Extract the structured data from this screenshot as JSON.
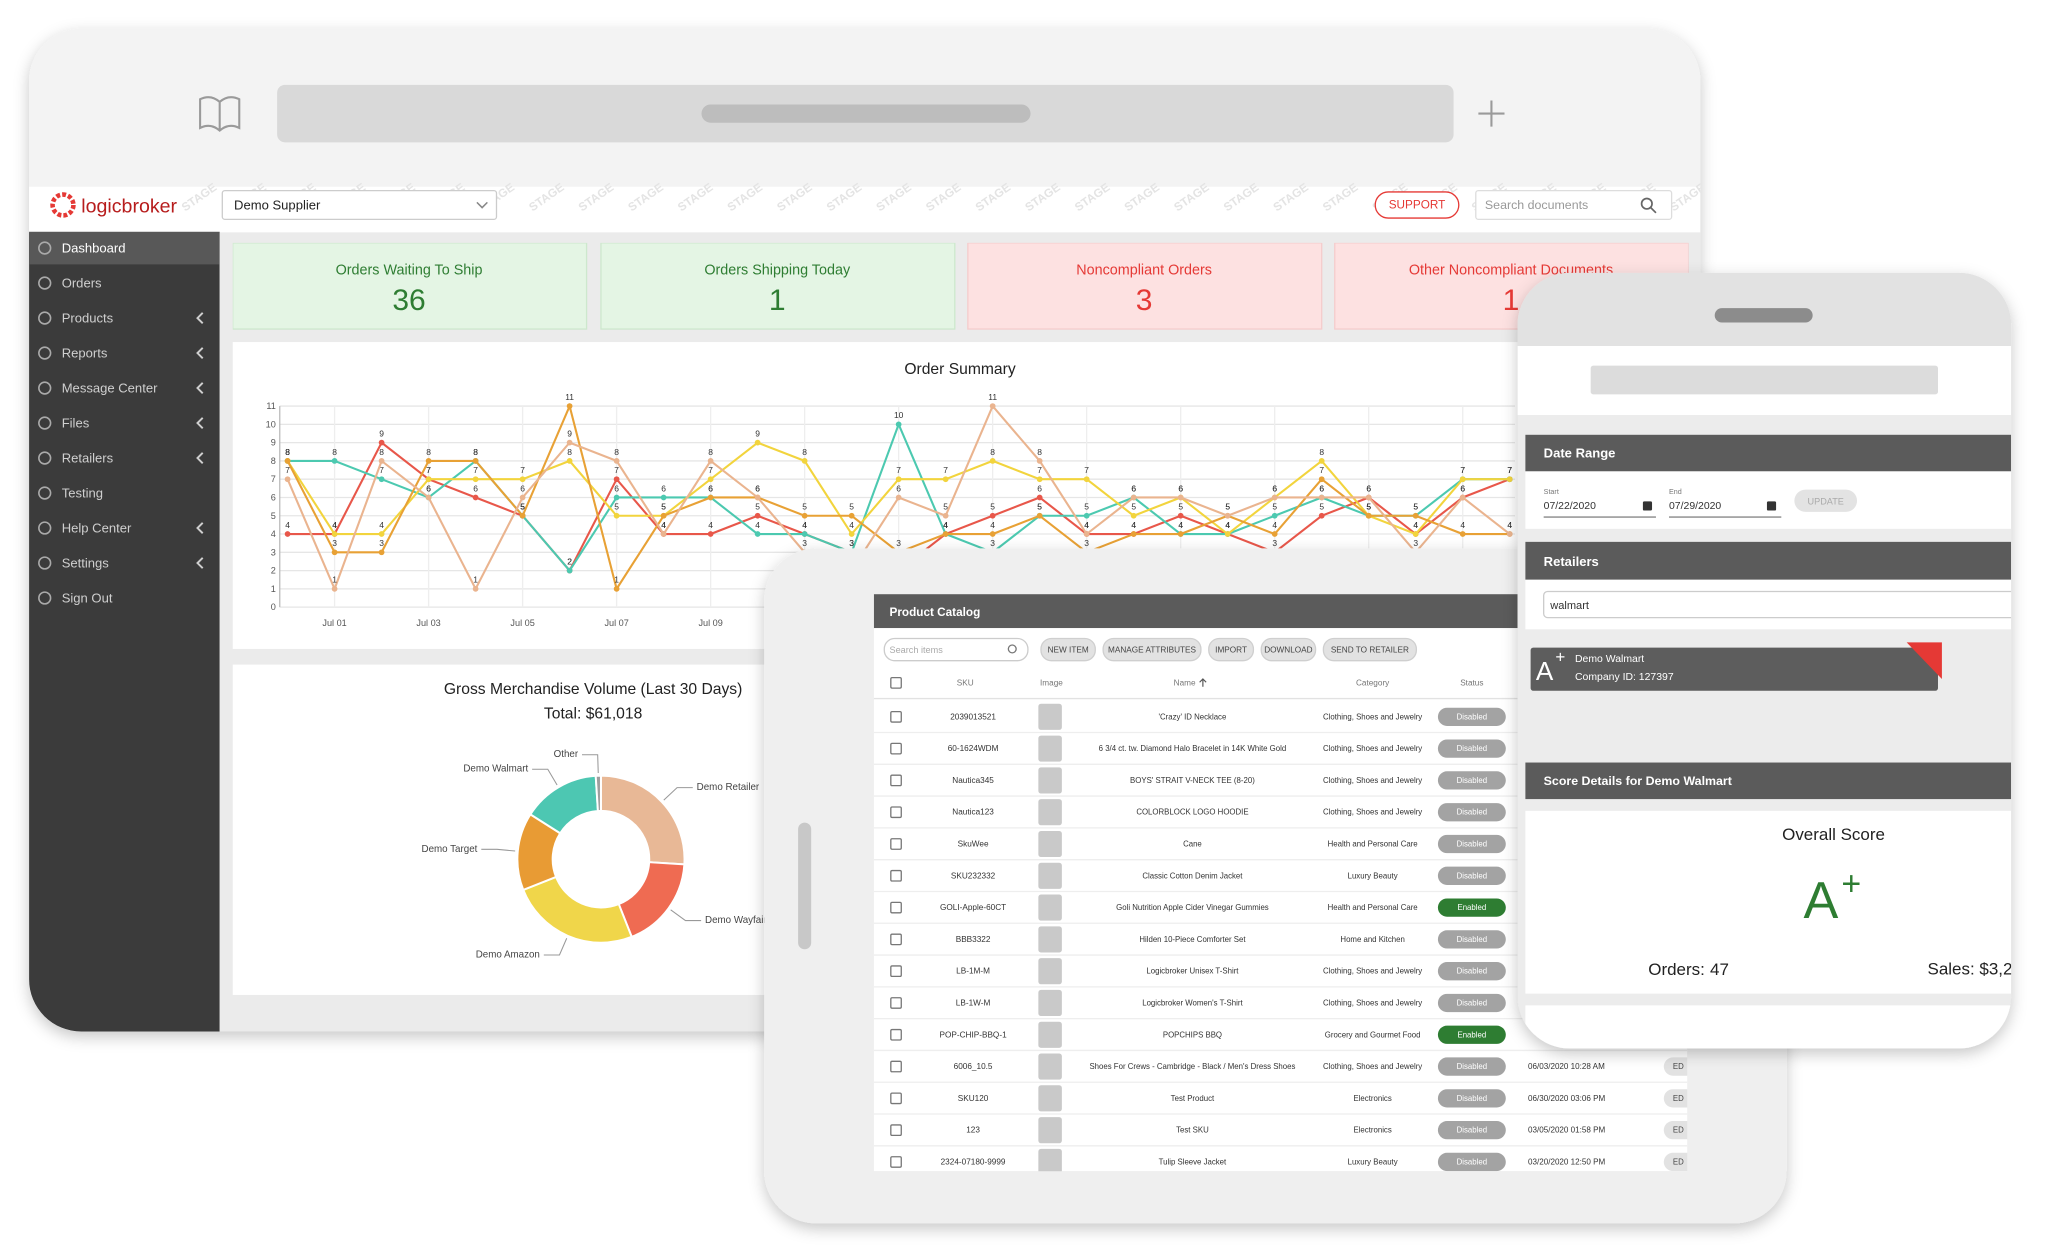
{
  "header": {
    "logo": "logicbroker",
    "watermark": "STAGE",
    "supplier": "Demo Supplier",
    "support": "SUPPORT",
    "search_placeholder": "Search documents"
  },
  "sidebar": [
    {
      "label": "Dashboard",
      "active": true
    },
    {
      "label": "Orders"
    },
    {
      "label": "Products",
      "submenu": true
    },
    {
      "label": "Reports",
      "submenu": true
    },
    {
      "label": "Message Center",
      "submenu": true
    },
    {
      "label": "Files",
      "submenu": true
    },
    {
      "label": "Retailers",
      "submenu": true
    },
    {
      "label": "Testing"
    },
    {
      "label": "Help Center",
      "submenu": true
    },
    {
      "label": "Settings",
      "submenu": true
    },
    {
      "label": "Sign Out"
    }
  ],
  "kpis": [
    {
      "label": "Orders Waiting To Ship",
      "value": 36,
      "tone": "positive"
    },
    {
      "label": "Orders Shipping Today",
      "value": 1,
      "tone": "positive"
    },
    {
      "label": "Noncompliant Orders",
      "value": 3,
      "tone": "negative"
    },
    {
      "label": "Other Noncompliant Documents",
      "value": 1,
      "tone": "negative"
    }
  ],
  "chart_data": [
    {
      "type": "line",
      "title": "Order Summary",
      "categories": [
        null,
        "Jul 01",
        null,
        "Jul 03",
        null,
        "Jul 05",
        null,
        "Jul 07",
        null,
        "Jul 09",
        null,
        null,
        null,
        null,
        null,
        null,
        null,
        null,
        null,
        null,
        null,
        null,
        null,
        null,
        null,
        null,
        null
      ],
      "series": [
        {
          "color": "#e8574a",
          "values": [
            4,
            4,
            9,
            7,
            6,
            5,
            2,
            7,
            4,
            4,
            5,
            4,
            3,
            2,
            4,
            5,
            6,
            4,
            4,
            5,
            4,
            3,
            5,
            6,
            4,
            6,
            7
          ]
        },
        {
          "color": "#4cc9b0",
          "values": [
            8,
            8,
            7,
            6,
            8,
            5,
            2,
            6,
            6,
            6,
            4,
            4,
            3,
            10,
            4,
            3,
            5,
            5,
            6,
            4,
            4,
            5,
            6,
            5,
            5,
            7,
            7
          ]
        },
        {
          "color": "#f2d43d",
          "values": [
            8,
            4,
            4,
            7,
            7,
            7,
            8,
            5,
            5,
            7,
            9,
            8,
            4,
            7,
            7,
            8,
            7,
            7,
            5,
            6,
            4,
            6,
            8,
            5,
            4,
            7,
            7
          ]
        },
        {
          "color": "#e8a135",
          "values": [
            8,
            3,
            3,
            8,
            8,
            5,
            11,
            1,
            5,
            6,
            6,
            5,
            5,
            3,
            4,
            4,
            5,
            3,
            4,
            4,
            5,
            4,
            7,
            5,
            5,
            4,
            4
          ]
        },
        {
          "color": "#eab48f",
          "values": [
            7,
            1,
            8,
            6,
            1,
            6,
            9,
            8,
            4,
            8,
            6,
            3,
            2,
            6,
            5,
            11,
            8,
            4,
            6,
            6,
            5,
            6,
            6,
            6,
            3,
            6,
            4
          ]
        }
      ],
      "ylim": [
        0,
        11
      ],
      "yticks": [
        0,
        1,
        2,
        3,
        4,
        5,
        6,
        7,
        8,
        9,
        10,
        11
      ],
      "grid": true
    },
    {
      "type": "pie",
      "donut": true,
      "title": "Gross Merchandise Volume (Last 30 Days)",
      "subtitle": "Total: $61,018",
      "categories": [
        "Demo Retailer",
        "Demo Wayfair",
        "Demo Amazon",
        "Demo Target",
        "Demo Walmart",
        "Other"
      ],
      "values": [
        26,
        18,
        25,
        15,
        15,
        1
      ],
      "colors": [
        "#e8b896",
        "#ef6b52",
        "#f0d64a",
        "#e89b34",
        "#4dc7b2",
        "#9e9e9e"
      ]
    }
  ],
  "product_catalog": {
    "title": "Product Catalog",
    "search_placeholder": "Search items",
    "buttons": [
      "NEW ITEM",
      "MANAGE ATTRIBUTES",
      "IMPORT",
      "DOWNLOAD",
      "SEND TO RETAILER"
    ],
    "columns": [
      "SKU",
      "Image",
      "Name",
      "Category",
      "Status"
    ],
    "rows": [
      {
        "sku": "2039013521",
        "name": "'Crazy' ID Necklace",
        "category": "Clothing, Shoes and Jewelry",
        "status": "Disabled"
      },
      {
        "sku": "60-1624WDM",
        "name": "6 3/4 ct. tw. Diamond Halo Bracelet in 14K White Gold",
        "category": "Clothing, Shoes and Jewelry",
        "status": "Disabled"
      },
      {
        "sku": "Nautica345",
        "name": "BOYS' STRAIT V-NECK TEE (8-20)",
        "category": "Clothing, Shoes and Jewelry",
        "status": "Disabled"
      },
      {
        "sku": "Nautica123",
        "name": "COLORBLOCK LOGO HOODIE",
        "category": "Clothing, Shoes and Jewelry",
        "status": "Disabled"
      },
      {
        "sku": "SkuWee",
        "name": "Cane",
        "category": "Health and Personal Care",
        "status": "Disabled"
      },
      {
        "sku": "SKU232332",
        "name": "Classic Cotton Denim Jacket",
        "category": "Luxury Beauty",
        "status": "Disabled"
      },
      {
        "sku": "GOLI-Apple-60CT",
        "name": "Goli Nutrition Apple Cider Vinegar Gummies",
        "category": "Health and Personal Care",
        "status": "Enabled"
      },
      {
        "sku": "BBB3322",
        "name": "Hilden 10-Piece Comforter Set",
        "category": "Home and Kitchen",
        "status": "Disabled"
      },
      {
        "sku": "LB-1M-M",
        "name": "Logicbroker Unisex T-Shirt",
        "category": "Clothing, Shoes and Jewelry",
        "status": "Disabled"
      },
      {
        "sku": "LB-1W-M",
        "name": "Logicbroker Women's T-Shirt",
        "category": "Clothing, Shoes and Jewelry",
        "status": "Disabled"
      },
      {
        "sku": "POP-CHIP-BBQ-1",
        "name": "POPCHIPS BBQ",
        "category": "Grocery and Gourmet Food",
        "status": "Enabled"
      },
      {
        "sku": "6006_10.5",
        "name": "Shoes For Crews - Cambridge - Black / Men's Dress Shoes",
        "category": "Clothing, Shoes and Jewelry",
        "status": "Disabled",
        "date": "06/03/2020 10:28 AM",
        "action": "ED"
      },
      {
        "sku": "SKU120",
        "name": "Test Product",
        "category": "Electronics",
        "status": "Disabled",
        "date": "06/30/2020 03:06 PM",
        "action": "ED"
      },
      {
        "sku": "123",
        "name": "Test SKU",
        "category": "Electronics",
        "status": "Disabled",
        "date": "03/05/2020 01:58 PM",
        "action": "ED"
      },
      {
        "sku": "2324-07180-9999",
        "name": "Tulip Sleeve Jacket",
        "category": "Luxury Beauty",
        "status": "Disabled",
        "date": "03/20/2020 12:50 PM",
        "action": "ED"
      }
    ]
  },
  "mobile": {
    "date_range": {
      "title": "Date Range",
      "start_label": "Start",
      "start": "07/22/2020",
      "end_label": "End",
      "end": "07/29/2020",
      "button": "UPDATE"
    },
    "retailers": {
      "title": "Retailers",
      "filter": "walmart",
      "card": {
        "grade": "A",
        "modifier": "+",
        "name": "Demo Walmart",
        "company": "Company ID: 127397"
      }
    },
    "score": {
      "title": "Score Details for Demo Walmart",
      "heading": "Overall Score",
      "grade": "A",
      "modifier": "+",
      "orders_label": "Orders:",
      "orders": 47,
      "sales": "Sales: $3,2"
    }
  }
}
